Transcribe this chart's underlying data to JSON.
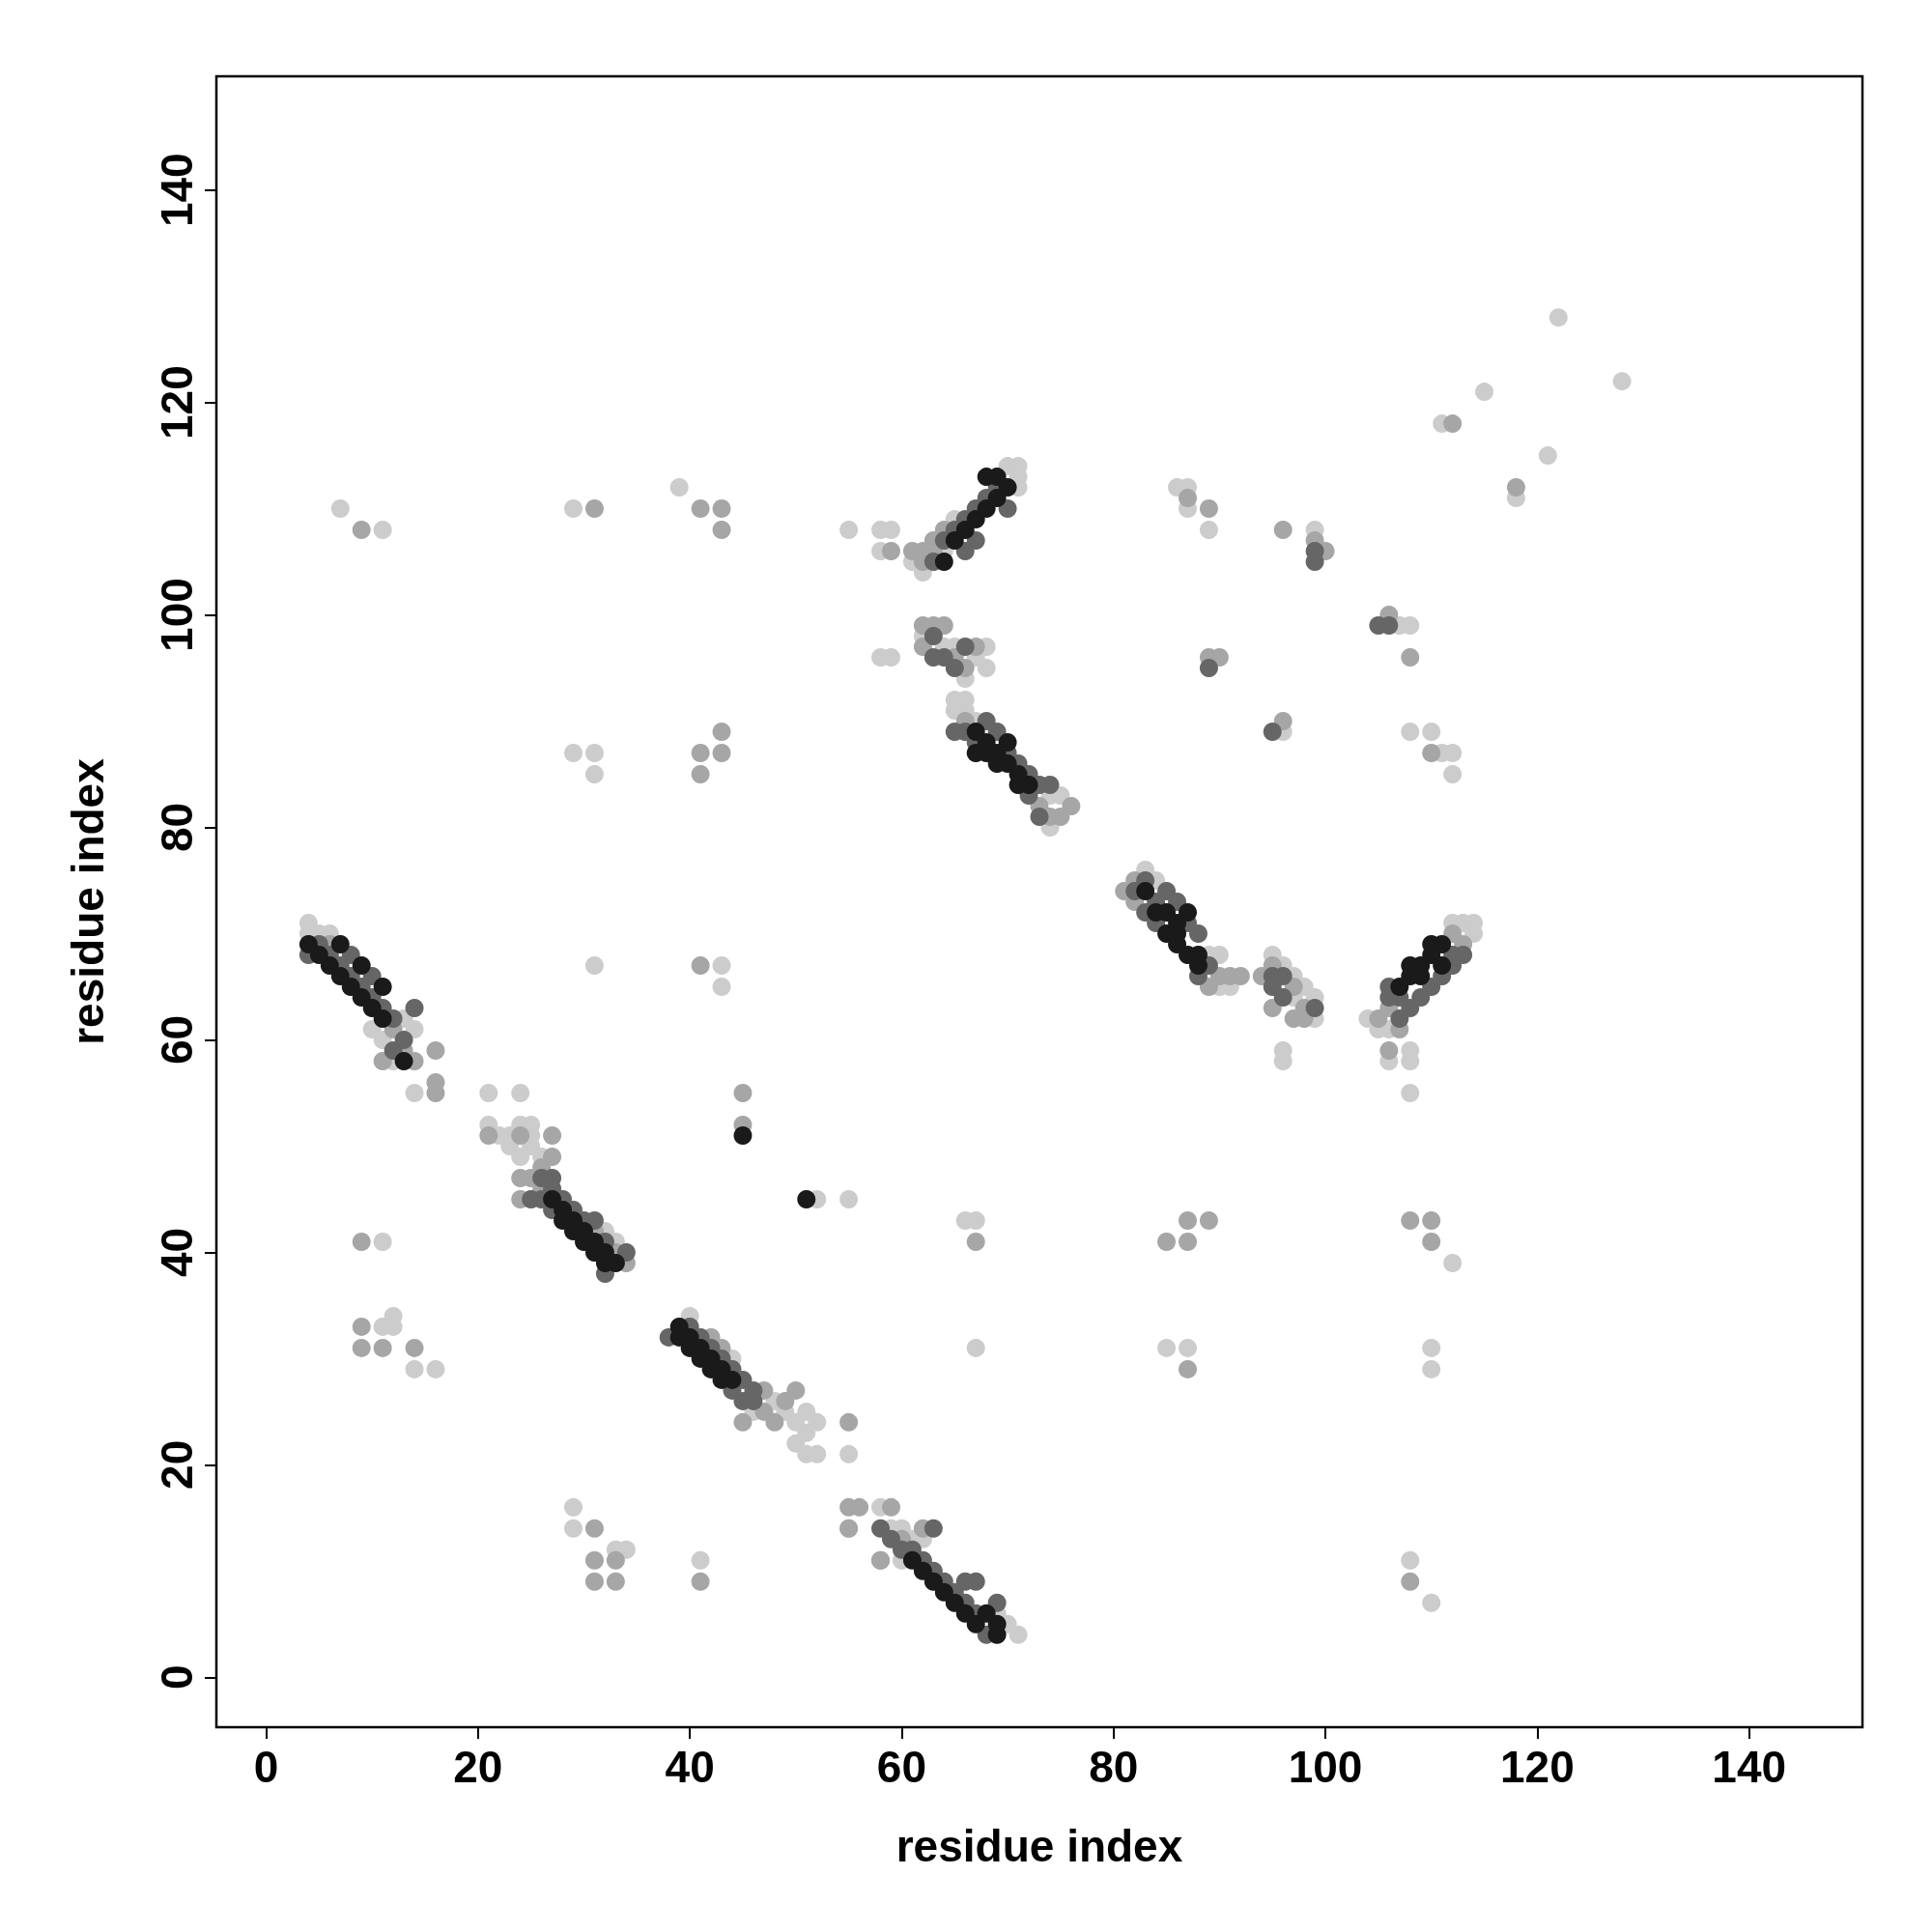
{
  "chart_data": {
    "type": "scatter",
    "xlabel": "residue index",
    "ylabel": "residue index",
    "xlim": [
      -4.7,
      150.7
    ],
    "ylim": [
      -4.7,
      150.7
    ],
    "xticks": [
      0,
      20,
      40,
      60,
      80,
      100,
      120,
      140
    ],
    "yticks": [
      0,
      20,
      40,
      60,
      80,
      100,
      120,
      140
    ],
    "marker": "circle",
    "grid": false,
    "series": [
      {
        "color": "#cccccc",
        "x": [
          4,
          4,
          5,
          6,
          10,
          11,
          14,
          12,
          14,
          13,
          21,
          21,
          22,
          23,
          24,
          25,
          25,
          24,
          25,
          26,
          23,
          24,
          32,
          33,
          40,
          44,
          46,
          48,
          49,
          50,
          51,
          50,
          51,
          52,
          55,
          52,
          51,
          55,
          59,
          60,
          61,
          60,
          62,
          71,
          70,
          69,
          58,
          61,
          62,
          70,
          71,
          71,
          71,
          64,
          65,
          62,
          64,
          65,
          67,
          68,
          68,
          66,
          65,
          65,
          66,
          66,
          74,
          75,
          74,
          67,
          83,
          84,
          89,
          90,
          91,
          90,
          95,
          96,
          97,
          98,
          99,
          97,
          99,
          96,
          96,
          104,
          105,
          106,
          112,
          113,
          114,
          114,
          106,
          108,
          108,
          108,
          7,
          11,
          29,
          39,
          55,
          58,
          59,
          58,
          58,
          59,
          86,
          87,
          87,
          89,
          99,
          107,
          108,
          96,
          108,
          110,
          111,
          112,
          112,
          111,
          115,
          118,
          121,
          122,
          128,
          29,
          31,
          31,
          31,
          43,
          43,
          52,
          55,
          11,
          66,
          67,
          112,
          11,
          12,
          12,
          14,
          16,
          67,
          85,
          87,
          110,
          110,
          29,
          29,
          33,
          34,
          41,
          108,
          110
        ],
        "values": [
          71,
          70,
          70,
          70,
          61,
          60,
          61,
          58,
          55,
          62,
          55,
          52,
          51,
          50,
          52,
          52,
          51,
          49,
          50,
          49,
          51,
          55,
          42,
          41,
          34,
          30,
          25,
          26,
          25,
          24,
          23,
          22,
          21,
          21,
          21,
          24,
          25,
          14,
          14,
          14,
          13,
          11,
          13,
          4,
          5,
          6,
          16,
          105,
          104,
          114,
          114,
          113,
          112,
          106,
          109,
          98,
          97,
          97,
          96,
          95,
          97,
          94,
          92,
          91,
          92,
          91,
          83,
          83,
          80,
          90,
          76,
          75,
          68,
          68,
          65,
          65,
          68,
          67,
          66,
          65,
          64,
          64,
          62,
          58,
          59,
          62,
          61,
          61,
          71,
          71,
          71,
          70,
          58,
          58,
          59,
          55,
          110,
          108,
          110,
          112,
          108,
          108,
          108,
          106,
          96,
          96,
          112,
          112,
          110,
          108,
          108,
          99,
          99,
          89,
          89,
          89,
          87,
          87,
          85,
          118,
          121,
          111,
          115,
          128,
          122,
          87,
          87,
          85,
          67,
          67,
          65,
          45,
          45,
          41,
          43,
          43,
          39,
          33,
          34,
          33,
          29,
          29,
          31,
          31,
          31,
          31,
          29,
          16,
          14,
          12,
          12,
          11,
          11,
          7
        ]
      },
      {
        "color": "#a6a6a6",
        "x": [
          6,
          11,
          14,
          16,
          16,
          16,
          12,
          13,
          21,
          24,
          24,
          25,
          26,
          27,
          27,
          24,
          26,
          33,
          34,
          31,
          42,
          43,
          47,
          47,
          45,
          48,
          50,
          55,
          49,
          55,
          56,
          58,
          59,
          55,
          60,
          62,
          58,
          62,
          63,
          63,
          64,
          61,
          62,
          62,
          63,
          64,
          62,
          65,
          66,
          67,
          76,
          75,
          74,
          73,
          66,
          81,
          82,
          82,
          89,
          90,
          92,
          91,
          94,
          95,
          97,
          98,
          97,
          95,
          98,
          105,
          106,
          107,
          113,
          112,
          106,
          9,
          31,
          41,
          43,
          43,
          59,
          87,
          89,
          96,
          99,
          100,
          106,
          108,
          89,
          90,
          96,
          110,
          112,
          118,
          41,
          41,
          43,
          43,
          41,
          45,
          45,
          9,
          67,
          85,
          87,
          87,
          89,
          108,
          110,
          110,
          9,
          9,
          11,
          14,
          87,
          31,
          31,
          31,
          33,
          33,
          41,
          108
        ],
        "values": [
          69,
          58,
          58,
          59,
          55,
          56,
          61,
          59,
          51,
          51,
          47,
          47,
          48,
          49,
          51,
          45,
          46,
          40,
          39,
          42,
          32,
          31,
          27,
          25,
          24,
          24,
          27,
          24,
          26,
          16,
          16,
          11,
          16,
          14,
          13,
          14,
          11,
          106,
          107,
          106,
          108,
          106,
          105,
          99,
          99,
          99,
          97,
          96,
          95,
          97,
          82,
          81,
          81,
          82,
          90,
          74,
          75,
          73,
          65,
          66,
          66,
          66,
          66,
          67,
          65,
          63,
          62,
          63,
          62,
          62,
          63,
          61,
          69,
          70,
          59,
          108,
          110,
          110,
          110,
          108,
          106,
          111,
          110,
          108,
          107,
          106,
          100,
          96,
          96,
          96,
          90,
          87,
          118,
          112,
          87,
          85,
          87,
          89,
          67,
          55,
          52,
          41,
          41,
          41,
          43,
          41,
          43,
          43,
          43,
          41,
          33,
          31,
          31,
          31,
          29,
          14,
          11,
          9,
          11,
          9,
          9,
          9
        ]
      },
      {
        "color": "#666666",
        "x": [
          4,
          5,
          6,
          7,
          8,
          9,
          10,
          10,
          8,
          11,
          12,
          12,
          13,
          14,
          26,
          27,
          25,
          26,
          27,
          28,
          29,
          30,
          31,
          32,
          34,
          27,
          32,
          38,
          40,
          41,
          42,
          43,
          44,
          45,
          46,
          45,
          44,
          46,
          58,
          59,
          60,
          61,
          62,
          63,
          64,
          65,
          66,
          67,
          63,
          66,
          67,
          69,
          68,
          64,
          65,
          66,
          67,
          68,
          69,
          63,
          66,
          67,
          70,
          63,
          64,
          65,
          63,
          66,
          65,
          66,
          67,
          68,
          69,
          70,
          71,
          72,
          73,
          72,
          73,
          74,
          82,
          83,
          84,
          85,
          86,
          87,
          88,
          89,
          88,
          83,
          84,
          95,
          95,
          96,
          99,
          96,
          106,
          106,
          107,
          108,
          109,
          110,
          111,
          112,
          113,
          107,
          112,
          99,
          99,
          105,
          106,
          89,
          95
        ],
        "values": [
          68,
          69,
          68,
          67,
          66,
          65,
          64,
          66,
          68,
          63,
          62,
          59,
          60,
          63,
          47,
          47,
          45,
          45,
          46,
          45,
          44,
          43,
          43,
          41,
          40,
          44,
          38,
          32,
          33,
          32,
          31,
          30,
          29,
          28,
          27,
          26,
          27,
          26,
          14,
          13,
          12,
          12,
          11,
          10,
          9,
          8,
          7,
          6,
          14,
          9,
          9,
          7,
          4,
          107,
          108,
          109,
          110,
          111,
          112,
          105,
          106,
          107,
          110,
          96,
          96,
          95,
          98,
          97,
          89,
          89,
          88,
          90,
          89,
          87,
          86,
          85,
          84,
          83,
          81,
          84,
          74,
          75,
          73,
          74,
          73,
          71,
          70,
          67,
          66,
          72,
          71,
          66,
          65,
          64,
          63,
          66,
          64,
          65,
          64,
          63,
          64,
          65,
          66,
          68,
          68,
          62,
          67,
          106,
          105,
          99,
          99,
          95,
          89
        ]
      },
      {
        "color": "#1a1a1a",
        "x": [
          4,
          5,
          6,
          7,
          8,
          9,
          10,
          11,
          11,
          7,
          9,
          13,
          27,
          28,
          29,
          30,
          31,
          32,
          33,
          28,
          29,
          30,
          31,
          32,
          39,
          40,
          41,
          42,
          43,
          44,
          40,
          41,
          42,
          39,
          43,
          61,
          62,
          63,
          64,
          65,
          66,
          67,
          68,
          69,
          69,
          65,
          66,
          67,
          68,
          69,
          70,
          69,
          64,
          68,
          67,
          68,
          69,
          70,
          71,
          72,
          68,
          69,
          70,
          71,
          67,
          83,
          84,
          85,
          86,
          87,
          85,
          86,
          87,
          88,
          86,
          88,
          107,
          108,
          108,
          109,
          110,
          110,
          111,
          109,
          111,
          45,
          51
        ],
        "values": [
          69,
          68,
          67,
          66,
          65,
          64,
          63,
          62,
          65,
          69,
          67,
          58,
          45,
          44,
          43,
          42,
          41,
          40,
          39,
          43,
          42,
          41,
          40,
          39,
          33,
          32,
          31,
          30,
          29,
          28,
          31,
          30,
          29,
          32,
          28,
          11,
          10,
          9,
          8,
          7,
          6,
          5,
          6,
          5,
          4,
          107,
          108,
          109,
          110,
          111,
          112,
          113,
          105,
          113,
          89,
          88,
          87,
          86,
          85,
          84,
          87,
          86,
          88,
          84,
          87,
          74,
          72,
          72,
          71,
          72,
          70,
          69,
          68,
          67,
          70,
          68,
          65,
          66,
          67,
          67,
          68,
          69,
          69,
          66,
          67,
          51,
          45
        ]
      }
    ]
  }
}
